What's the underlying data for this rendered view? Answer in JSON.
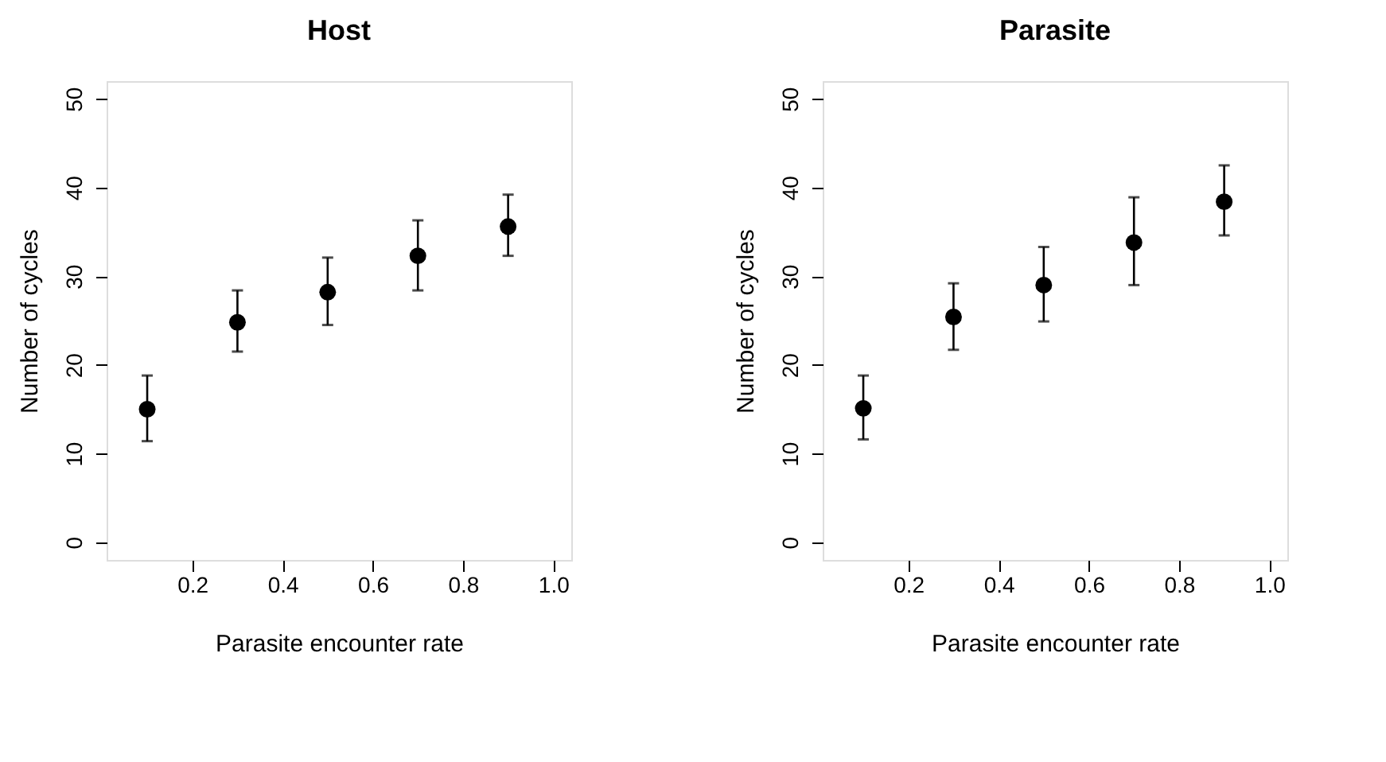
{
  "chart_data": [
    {
      "type": "scatter",
      "title": "Host",
      "xlabel": "Parasite encounter rate",
      "ylabel": "Number of cycles",
      "x": [
        0.1,
        0.3,
        0.5,
        0.7,
        0.9
      ],
      "series": [
        {
          "color": "#000000",
          "values": [
            15.0,
            24.8,
            28.2,
            32.3,
            35.6
          ],
          "errors": [
            [
              11.4,
              18.8
            ],
            [
              21.5,
              28.4
            ],
            [
              24.5,
              32.1
            ],
            [
              28.4,
              36.3
            ],
            [
              32.3,
              39.2
            ]
          ]
        }
      ],
      "xlim": [
        0.01,
        1.04
      ],
      "xticks": [
        0.2,
        0.4,
        0.6,
        0.8,
        {
          "value": 1.0,
          "label": "1.0"
        }
      ],
      "ylim": [
        -2,
        52
      ],
      "yticks": [
        0,
        10,
        20,
        30,
        40,
        50
      ],
      "grid": false,
      "marker": "circle"
    },
    {
      "type": "scatter",
      "title": "Parasite",
      "xlabel": "Parasite encounter rate",
      "ylabel": "Number of cycles",
      "x": [
        0.1,
        0.3,
        0.5,
        0.7,
        0.9
      ],
      "series": [
        {
          "color": "#000000",
          "values": [
            15.1,
            25.4,
            29.0,
            33.8,
            38.4
          ],
          "errors": [
            [
              11.6,
              18.8
            ],
            [
              21.7,
              29.2
            ],
            [
              24.9,
              33.3
            ],
            [
              29.0,
              38.9
            ],
            [
              34.6,
              42.5
            ]
          ]
        }
      ],
      "xlim": [
        0.01,
        1.04
      ],
      "xticks": [
        0.2,
        0.4,
        0.6,
        0.8,
        {
          "value": 1.0,
          "label": "1.0"
        }
      ],
      "ylim": [
        -2,
        52
      ],
      "yticks": [
        0,
        10,
        20,
        30,
        40,
        50
      ],
      "grid": false,
      "marker": "circle"
    }
  ]
}
